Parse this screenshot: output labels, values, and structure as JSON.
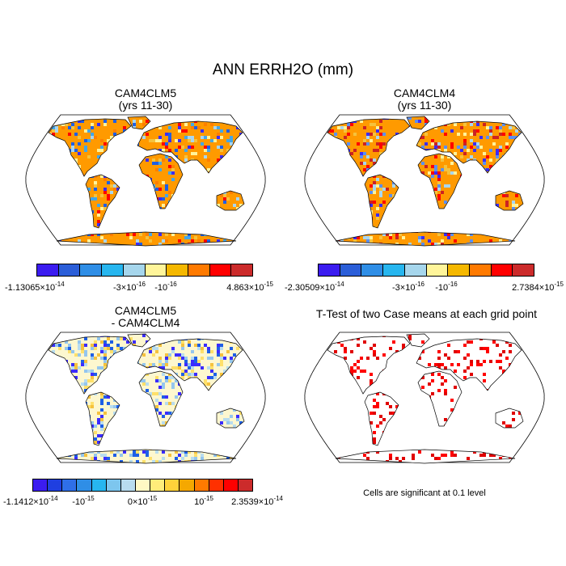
{
  "main_title": "ANN ERRH2O (mm)",
  "panels": [
    {
      "id": "p1",
      "title_line1": "CAM4CLM5",
      "title_line2": "(yrs 11-30)",
      "fill": "#ff9a00",
      "speckle": [
        "#3b2cff",
        "#1e5fe6",
        "#44a6e8",
        "#a9d6ef",
        "#fff39a",
        "#f5c23d",
        "#ff7f00",
        "#ff0000"
      ]
    },
    {
      "id": "p2",
      "title_line1": "CAM4CLM4",
      "title_line2": "(yrs 11-30)",
      "fill": "#ff9a00",
      "speckle": [
        "#3b2cff",
        "#5c8ff0",
        "#a9d6ef",
        "#fff39a",
        "#f5c23d",
        "#ff0000",
        "#cc2222"
      ]
    },
    {
      "id": "p3",
      "title_line1": "CAM4CLM5",
      "title_line2": "- CAM4CLM4",
      "fill": "#fdf7cf",
      "speckle": [
        "#b7dcef",
        "#94c6ee",
        "#ffe06a",
        "#f5c23d",
        "#3b2cff",
        "#1e5fe6"
      ]
    },
    {
      "id": "p4",
      "title_line1": "T-Test of two Case means at each grid point",
      "title_line2": "",
      "fill": "#ffffff",
      "speckle": [
        "#e00000",
        "#ff0000"
      ]
    }
  ],
  "colorbars": {
    "cb1": {
      "colors": [
        "#3b1cf0",
        "#2b5ed8",
        "#2f8ee6",
        "#27b6ef",
        "#a6d6ec",
        "#fff59a",
        "#f5b800",
        "#ff7a00",
        "#ff0000",
        "#cc2b2b"
      ],
      "labels": {
        "left": "-1.13065×10",
        "left_exp": "-14",
        "m1": "-3×10",
        "m1_exp": "-16",
        "m2": "-10",
        "m2_exp": "-16",
        "right": "4.863×10",
        "right_exp": "-15"
      }
    },
    "cb2": {
      "colors": [
        "#3b1cf0",
        "#2b5ed8",
        "#2f8ee6",
        "#27b6ef",
        "#a6d6ec",
        "#fff59a",
        "#f5b800",
        "#ff7a00",
        "#ff0000",
        "#cc2b2b"
      ],
      "labels": {
        "left": "-2.30509×10",
        "left_exp": "-14",
        "m1": "-3×10",
        "m1_exp": "-16",
        "m2": "-10",
        "m2_exp": "-16",
        "right": "2.7384×10",
        "right_exp": "-15"
      }
    },
    "cb3": {
      "colors": [
        "#3b1cf0",
        "#1f3fe0",
        "#2f6fe8",
        "#2f8ee6",
        "#27b6ef",
        "#7dc6ee",
        "#b8dcef",
        "#fff8c4",
        "#ffec7a",
        "#ffd23a",
        "#f5a800",
        "#ff7a00",
        "#ff3000",
        "#ff0000",
        "#cc2b2b"
      ],
      "labels": {
        "left": "-1.1412×10",
        "left_exp": "-14",
        "m1": "-10",
        "m1_exp": "-15",
        "m2": "0×10",
        "m2_exp": "-15",
        "m3": "10",
        "m3_exp": "-15",
        "right": "2.3539×10",
        "right_exp": "-14"
      }
    }
  },
  "significance_note": "Cells are significant at 0.1 level"
}
